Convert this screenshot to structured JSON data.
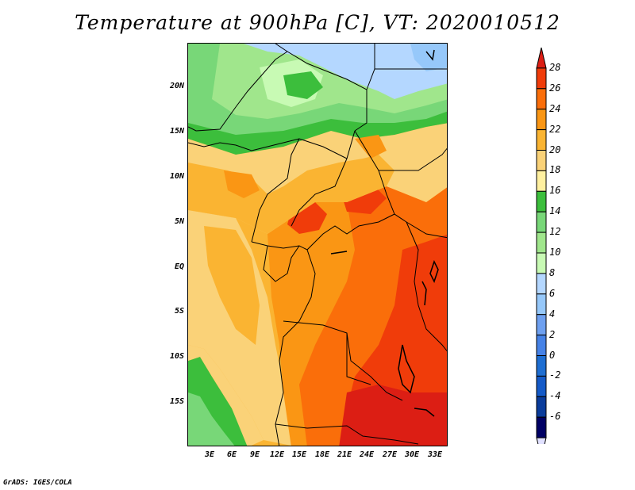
{
  "title": "Temperature at 900hPa [C], VT: 2020010512",
  "footer": "GrADS: IGES/COLA",
  "y_axis_labels": [
    "20N",
    "15N",
    "10N",
    "5N",
    "EQ",
    "5S",
    "10S",
    "15S"
  ],
  "x_axis_labels": [
    "3E",
    "6E",
    "9E",
    "12E",
    "15E",
    "18E",
    "21E",
    "24E",
    "27E",
    "30E",
    "33E"
  ],
  "colorbar": {
    "levels": [
      "28",
      "26",
      "24",
      "22",
      "20",
      "18",
      "16",
      "14",
      "12",
      "10",
      "8",
      "6",
      "4",
      "2",
      "0",
      "-2",
      "-4",
      "-6"
    ],
    "colors": [
      "#dc1e14",
      "#f03c0a",
      "#fa6e0a",
      "#fa9614",
      "#fab432",
      "#fad278",
      "#fff0a0",
      "#3cbe3c",
      "#78d778",
      "#a0e68c",
      "#c8fab4",
      "#b4d7ff",
      "#96c8fa",
      "#6ea0f0",
      "#4682e6",
      "#1e6ed2",
      "#145ac8",
      "#0a3c9b",
      "#000064",
      "#e1e1ff"
    ]
  }
}
